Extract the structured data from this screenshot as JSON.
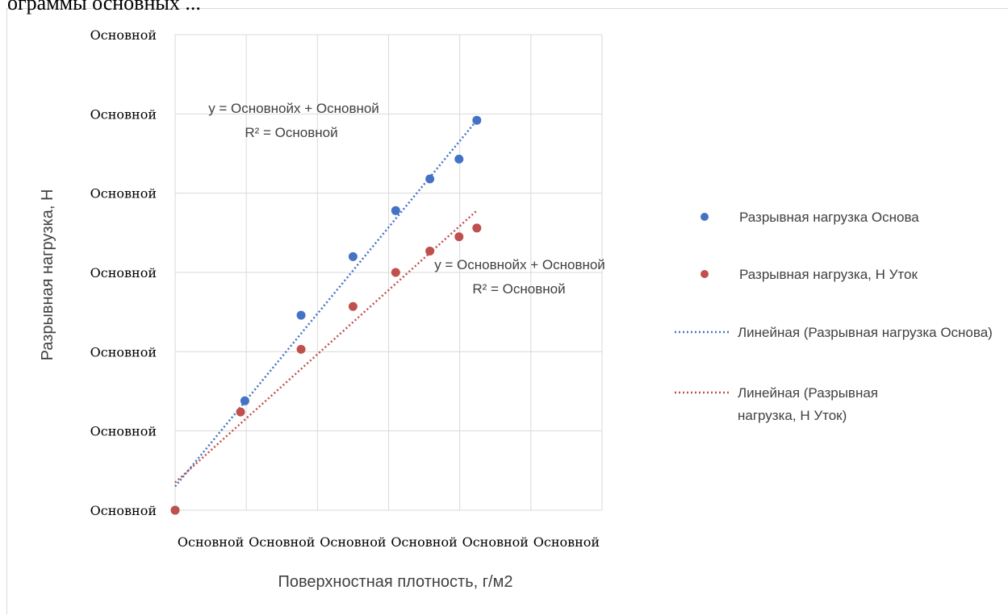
{
  "header": {
    "cut_text": "ограммы основных ..."
  },
  "chart_data": {
    "type": "scatter",
    "xlabel": "Поверхностная плотность, г/м2",
    "ylabel": "Разрывная нагрузка, Н",
    "x_tick_labels": [
      "Основной",
      "Основной",
      "Основной",
      "Основной",
      "Основной",
      "Основной"
    ],
    "y_tick_labels": [
      "Основной",
      "Основной",
      "Основной",
      "Основной",
      "Основной",
      "Основной",
      "Основной"
    ],
    "xlim": [
      0,
      6
    ],
    "ylim": [
      0,
      6
    ],
    "grid": true,
    "legend_position": "right",
    "series": [
      {
        "name": "Разрывная нагрузка Основа",
        "color": "#4472c4",
        "x": [
          0.0,
          0.98,
          1.77,
          2.5,
          3.1,
          3.58,
          3.99,
          4.24
        ],
        "y": [
          0.0,
          1.38,
          2.46,
          3.2,
          3.78,
          4.18,
          4.43,
          4.92
        ]
      },
      {
        "name": "Разрывная нагрузка, Н Уток",
        "color": "#c0504d",
        "x": [
          0.0,
          0.92,
          1.77,
          2.5,
          3.1,
          3.58,
          3.99,
          4.24
        ],
        "y": [
          0.0,
          1.24,
          2.03,
          2.57,
          3.0,
          3.27,
          3.45,
          3.56
        ]
      }
    ],
    "trendlines": [
      {
        "name": "Линейная (Разрывная нагрузка Основа)",
        "color": "#4472c4",
        "x": [
          0.0,
          4.24
        ],
        "y": [
          0.3,
          4.92
        ],
        "equation": "y = Основнойx + Основной",
        "r2": "R² = Основной"
      },
      {
        "name": "Линейная (Разрывная нагрузка, Н Уток)",
        "color": "#c0504d",
        "x": [
          0.0,
          4.24
        ],
        "y": [
          0.35,
          3.78
        ],
        "equation": "y = Основнойx + Основной",
        "r2": "R² = Основной"
      }
    ]
  }
}
